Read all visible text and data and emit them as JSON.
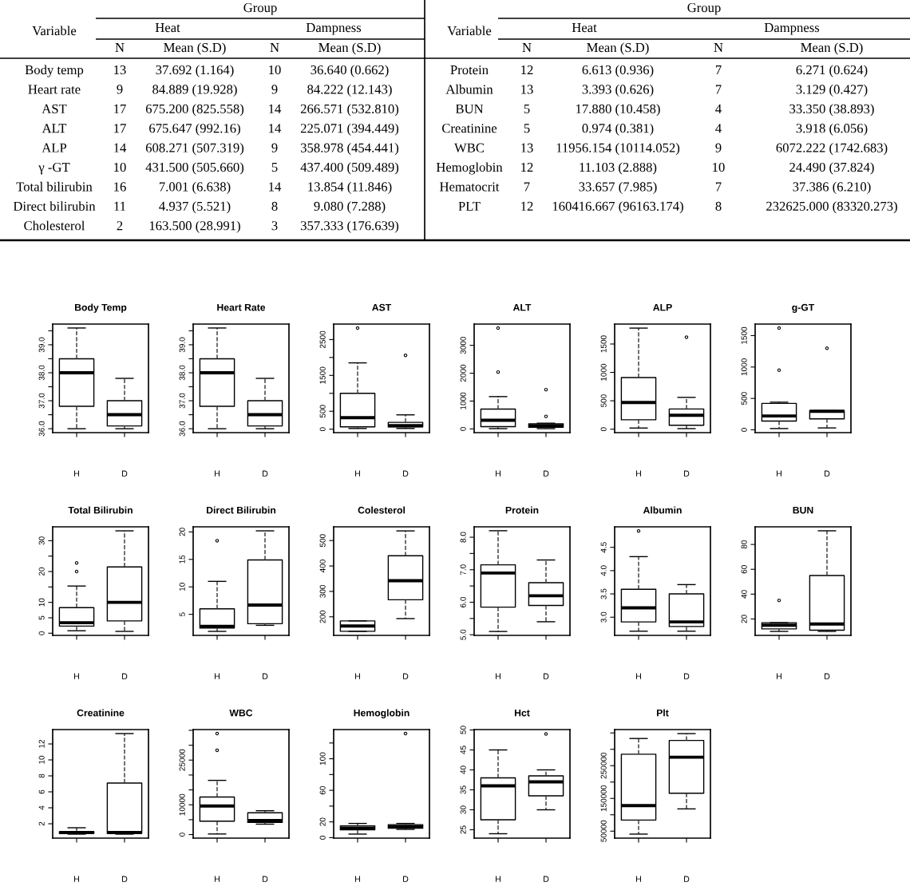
{
  "chart_data": [
    {
      "type": "other",
      "title": "Group",
      "ylabel": "Variable",
      "annotations": [
        "Heat",
        "Dampness"
      ],
      "categories": [
        "N",
        "Mean (S.D)",
        "N",
        "Mean (S.D)"
      ],
      "y_categories": [
        "Body temp",
        "Heart rate",
        "AST",
        "ALT",
        "ALP",
        "γ -GT",
        "Total bilirubin",
        "Direct bilirubin",
        "Cholesterol"
      ],
      "cell_labels": [
        [
          "13",
          "37.692 (1.164)",
          "10",
          "36.640 (0.662)"
        ],
        [
          "9",
          "84.889 (19.928)",
          "9",
          "84.222 (12.143)"
        ],
        [
          "17",
          "675.200 (825.558)",
          "14",
          "266.571 (532.810)"
        ],
        [
          "17",
          "675.647 (992.16)",
          "14",
          "225.071 (394.449)"
        ],
        [
          "14",
          "608.271 (507.319)",
          "9",
          "358.978 (454.441)"
        ],
        [
          "10",
          "431.500 (505.660)",
          "5",
          "437.400 (509.489)"
        ],
        [
          "16",
          "7.001 (6.638)",
          "14",
          "13.854 (11.846)"
        ],
        [
          "11",
          "4.937 (5.521)",
          "8",
          "9.080 (7.288)"
        ],
        [
          "2",
          "163.500 (28.991)",
          "3",
          "357.333 (176.639)"
        ]
      ]
    },
    {
      "type": "other",
      "title": "Group",
      "ylabel": "Variable",
      "annotations": [
        "Heat",
        "Dampness"
      ],
      "categories": [
        "N",
        "Mean (S.D)",
        "N",
        "Mean (S.D)"
      ],
      "y_categories": [
        "Protein",
        "Albumin",
        "BUN",
        "Creatinine",
        "WBC",
        "Hemoglobin",
        "Hematocrit",
        "PLT"
      ],
      "cell_labels": [
        [
          "12",
          "6.613 (0.936)",
          "7",
          "6.271 (0.624)"
        ],
        [
          "13",
          "3.393 (0.626)",
          "7",
          "3.129 (0.427)"
        ],
        [
          "5",
          "17.880 (10.458)",
          "4",
          "33.350 (38.893)"
        ],
        [
          "5",
          "0.974 (0.381)",
          "4",
          "3.918 (6.056)"
        ],
        [
          "13",
          "11956.154 (10114.052)",
          "9",
          "6072.222 (1742.683)"
        ],
        [
          "12",
          "11.103 (2.888)",
          "10",
          "24.490 (37.824)"
        ],
        [
          "7",
          "33.657 (7.985)",
          "7",
          "37.386 (6.210)"
        ],
        [
          "12",
          "160416.667 (96163.174)",
          "8",
          "232625.000 (83320.273)"
        ]
      ]
    },
    {
      "type": "box",
      "title": "Body Temp",
      "categories": [
        "H",
        "D"
      ],
      "marker": "circle",
      "line_style": "dashed",
      "ylim": [
        35.86,
        39.74
      ],
      "yticks": [
        {
          "value": 36,
          "label": "36.0"
        },
        {
          "value": 36.5,
          "label": null
        },
        {
          "value": 37,
          "label": "37.0"
        },
        {
          "value": 37.5,
          "label": null
        },
        {
          "value": 38,
          "label": "38.0"
        },
        {
          "value": 38.5,
          "label": null
        },
        {
          "value": 39,
          "label": "39.0"
        },
        {
          "value": 39.5,
          "label": null
        }
      ],
      "boxes": [
        {
          "low": 36.0,
          "q1": 36.8,
          "median": 38.0,
          "q3": 38.5,
          "high": 39.6
        },
        {
          "low": 36.0,
          "q1": 36.1,
          "median": 36.5,
          "q3": 37.0,
          "high": 37.8
        }
      ]
    },
    {
      "type": "box",
      "title": "Heart Rate",
      "categories": [
        "H",
        "D"
      ],
      "marker": "circle",
      "line_style": "dashed",
      "ylim": [
        35.86,
        39.74
      ],
      "yticks": [
        {
          "value": 36,
          "label": "36.0"
        },
        {
          "value": 36.5,
          "label": null
        },
        {
          "value": 37,
          "label": "37.0"
        },
        {
          "value": 37.5,
          "label": null
        },
        {
          "value": 38,
          "label": "38.0"
        },
        {
          "value": 38.5,
          "label": null
        },
        {
          "value": 39,
          "label": "39.0"
        },
        {
          "value": 39.5,
          "label": null
        }
      ],
      "boxes": [
        {
          "low": 36.0,
          "q1": 36.8,
          "median": 38.0,
          "q3": 38.5,
          "high": 39.6
        },
        {
          "low": 36.0,
          "q1": 36.1,
          "median": 36.5,
          "q3": 37.0,
          "high": 37.8
        }
      ]
    },
    {
      "type": "box",
      "title": "AST",
      "categories": [
        "H",
        "D"
      ],
      "marker": "circle",
      "line_style": "dashed",
      "ylim": [
        -96,
        2932
      ],
      "yticks": [
        0,
        500,
        {
          "value": 1000,
          "label": null
        },
        1500,
        {
          "value": 2000,
          "label": null
        },
        2500
      ],
      "boxes": [
        {
          "low": 20,
          "q1": 65,
          "median": 320,
          "q3": 1000,
          "high": 1850,
          "outliers": [
            2820
          ]
        },
        {
          "low": 20,
          "q1": 65,
          "median": 100,
          "q3": 190,
          "high": 400,
          "outliers": [
            2060
          ]
        }
      ]
    },
    {
      "type": "box",
      "title": "ALT",
      "categories": [
        "H",
        "D"
      ],
      "marker": "circle",
      "line_style": "dashed",
      "ylim": [
        -134,
        3764
      ],
      "yticks": [
        0,
        1000,
        2000,
        3000
      ],
      "boxes": [
        {
          "low": 10,
          "q1": 80,
          "median": 310,
          "q3": 710,
          "high": 1160,
          "outliers": [
            2040,
            3620
          ]
        },
        {
          "low": 10,
          "q1": 60,
          "median": 120,
          "q3": 185,
          "high": 205,
          "outliers": [
            450,
            1410
          ]
        }
      ]
    },
    {
      "type": "box",
      "title": "ALP",
      "categories": [
        "H",
        "D"
      ],
      "marker": "circle",
      "line_style": "dashed",
      "ylim": [
        -61,
        1851
      ],
      "yticks": [
        0,
        500,
        1000,
        1500
      ],
      "boxes": [
        {
          "low": 20,
          "q1": 165,
          "median": 470,
          "q3": 910,
          "high": 1780
        },
        {
          "low": 10,
          "q1": 70,
          "median": 245,
          "q3": 355,
          "high": 560,
          "outliers": [
            1620
          ]
        }
      ]
    },
    {
      "type": "box",
      "title": "g-GT",
      "categories": [
        "H",
        "D"
      ],
      "marker": "circle",
      "line_style": "dashed",
      "ylim": [
        -45,
        1684
      ],
      "yticks": [
        0,
        500,
        1000,
        1500
      ],
      "boxes": [
        {
          "low": 20,
          "q1": 140,
          "median": 220,
          "q3": 420,
          "high": 440,
          "outliers": [
            950,
            1620
          ]
        },
        {
          "low": 30,
          "q1": 175,
          "median": 295,
          "q3": 305,
          "high": 305,
          "outliers": [
            1300
          ]
        }
      ]
    },
    {
      "type": "box",
      "title": "Total Bilirubin",
      "categories": [
        "H",
        "D"
      ],
      "marker": "circle",
      "line_style": "dashed",
      "ylim": [
        -0.7,
        34.5
      ],
      "yticks": [
        0,
        5,
        10,
        {
          "value": 15,
          "label": null
        },
        20,
        {
          "value": 25,
          "label": null
        },
        30
      ],
      "boxes": [
        {
          "low": 0.8,
          "q1": 2.3,
          "median": 3.4,
          "q3": 8.3,
          "high": 15.3,
          "outliers": [
            20.0,
            22.8
          ]
        },
        {
          "low": 0.6,
          "q1": 4.0,
          "median": 10.0,
          "q3": 21.5,
          "high": 33.2
        }
      ]
    },
    {
      "type": "box",
      "title": "Direct Bilirubin",
      "categories": [
        "H",
        "D"
      ],
      "marker": "circle",
      "line_style": "dashed",
      "ylim": [
        1.17,
        20.93
      ],
      "yticks": [
        5,
        10,
        15,
        20
      ],
      "boxes": [
        {
          "low": 1.9,
          "q1": 2.5,
          "median": 2.8,
          "q3": 6.0,
          "high": 11.0,
          "outliers": [
            18.4
          ]
        },
        {
          "low": 3.0,
          "q1": 3.3,
          "median": 6.7,
          "q3": 14.9,
          "high": 20.2
        }
      ]
    },
    {
      "type": "box",
      "title": "Colesterol",
      "categories": [
        "H",
        "D"
      ],
      "marker": "circle",
      "line_style": "dashed",
      "ylim": [
        127,
        554
      ],
      "yticks": [
        200,
        300,
        400,
        500
      ],
      "boxes": [
        {
          "low": 143,
          "q1": 143,
          "median": 164,
          "q3": 184,
          "high": 184
        },
        {
          "low": 193,
          "q1": 267,
          "median": 342,
          "q3": 440,
          "high": 538
        }
      ]
    },
    {
      "type": "box",
      "title": "Protein",
      "categories": [
        "H",
        "D"
      ],
      "marker": "circle",
      "line_style": "dashed",
      "ylim": [
        4.98,
        8.32
      ],
      "yticks": [
        {
          "value": 5,
          "label": "5.0"
        },
        {
          "value": 5.5,
          "label": null
        },
        {
          "value": 6,
          "label": "6.0"
        },
        {
          "value": 6.5,
          "label": null
        },
        {
          "value": 7,
          "label": "7.0"
        },
        {
          "value": 7.5,
          "label": null
        },
        {
          "value": 8,
          "label": "8.0"
        }
      ],
      "boxes": [
        {
          "low": 5.1,
          "q1": 5.85,
          "median": 6.9,
          "q3": 7.15,
          "high": 8.2
        },
        {
          "low": 5.4,
          "q1": 5.9,
          "median": 6.2,
          "q3": 6.6,
          "high": 7.3
        }
      ]
    },
    {
      "type": "box",
      "title": "Albumin",
      "categories": [
        "H",
        "D"
      ],
      "marker": "circle",
      "line_style": "dashed",
      "ylim": [
        2.61,
        4.94
      ],
      "yticks": [
        {
          "value": 3,
          "label": "3.0"
        },
        3.5,
        {
          "value": 4,
          "label": "4.0"
        },
        4.5
      ],
      "boxes": [
        {
          "low": 2.7,
          "q1": 2.9,
          "median": 3.2,
          "q3": 3.6,
          "high": 4.3,
          "outliers": [
            4.85
          ]
        },
        {
          "low": 2.7,
          "q1": 2.8,
          "median": 2.9,
          "q3": 3.5,
          "high": 3.7
        }
      ]
    },
    {
      "type": "box",
      "title": "BUN",
      "categories": [
        "H",
        "D"
      ],
      "marker": "circle",
      "line_style": "dashed",
      "ylim": [
        6.8,
        94.2
      ],
      "yticks": [
        20,
        40,
        60,
        80
      ],
      "boxes": [
        {
          "low": 10,
          "q1": 12,
          "median": 15,
          "q3": 17,
          "high": 17,
          "outliers": [
            35
          ]
        },
        {
          "low": 10,
          "q1": 11,
          "median": 16,
          "q3": 55,
          "high": 91
        }
      ]
    },
    {
      "type": "box",
      "title": "Creatinine",
      "categories": [
        "H",
        "D"
      ],
      "marker": "circle",
      "line_style": "dashed",
      "ylim": [
        0.2,
        13.8
      ],
      "yticks": [
        2,
        4,
        6,
        8,
        10,
        12
      ],
      "boxes": [
        {
          "low": 0.7,
          "q1": 0.8,
          "median": 0.9,
          "q3": 1.0,
          "high": 1.5
        },
        {
          "low": 0.7,
          "q1": 0.8,
          "median": 0.9,
          "q3": 7.1,
          "high": 13.3
        }
      ]
    },
    {
      "type": "box",
      "title": "WBC",
      "categories": [
        "H",
        "D"
      ],
      "marker": "circle",
      "line_style": "dashed",
      "ylim": [
        -1190,
        35250
      ],
      "yticks": [
        0,
        {
          "value": 5000,
          "label": null
        },
        10000,
        {
          "value": 15000,
          "label": null
        },
        {
          "value": 20000,
          "label": null
        },
        25000,
        {
          "value": 30000,
          "label": null
        },
        {
          "value": 35000,
          "label": null
        }
      ],
      "boxes": [
        {
          "low": 200,
          "q1": 4500,
          "median": 9600,
          "q3": 12600,
          "high": 18200,
          "outliers": [
            28300,
            33900
          ]
        },
        {
          "low": 3500,
          "q1": 4100,
          "median": 4700,
          "q3": 7300,
          "high": 8000
        }
      ]
    },
    {
      "type": "box",
      "title": "Hemoglobin",
      "categories": [
        "H",
        "D"
      ],
      "marker": "circle",
      "line_style": "dashed",
      "ylim": [
        -0.6,
        137
      ],
      "yticks": [
        0,
        20,
        {
          "value": 40,
          "label": null
        },
        60,
        {
          "value": 80,
          "label": null
        },
        100,
        {
          "value": 120,
          "label": null
        }
      ],
      "boxes": [
        {
          "low": 4.5,
          "q1": 10,
          "median": 12,
          "q3": 15,
          "high": 18
        },
        {
          "low": 10.5,
          "q1": 12,
          "median": 14,
          "q3": 16.5,
          "high": 18,
          "outliers": [
            132
          ]
        }
      ]
    },
    {
      "type": "box",
      "title": "Hct",
      "categories": [
        "H",
        "D"
      ],
      "marker": "circle",
      "line_style": "dashed",
      "ylim": [
        22.9,
        50.1
      ],
      "yticks": [
        25,
        30,
        35,
        40,
        45,
        50
      ],
      "boxes": [
        {
          "low": 24,
          "q1": 27.5,
          "median": 36,
          "q3": 38,
          "high": 45
        },
        {
          "low": 30,
          "q1": 33.5,
          "median": 37,
          "q3": 38.5,
          "high": 40,
          "outliers": [
            49
          ]
        }
      ]
    },
    {
      "type": "box",
      "title": "Plt",
      "categories": [
        "H",
        "D"
      ],
      "marker": "circle",
      "line_style": "dashed",
      "ylim": [
        28700,
        360300
      ],
      "yticks": [
        50000,
        {
          "value": 100000,
          "label": null
        },
        150000,
        {
          "value": 200000,
          "label": null
        },
        250000,
        {
          "value": 300000,
          "label": null
        },
        {
          "value": 350000,
          "label": null
        }
      ],
      "boxes": [
        {
          "low": 41000,
          "q1": 84000,
          "median": 128000,
          "q3": 285000,
          "high": 333000
        },
        {
          "low": 118000,
          "q1": 166000,
          "median": 276000,
          "q3": 327000,
          "high": 348000
        }
      ]
    }
  ]
}
